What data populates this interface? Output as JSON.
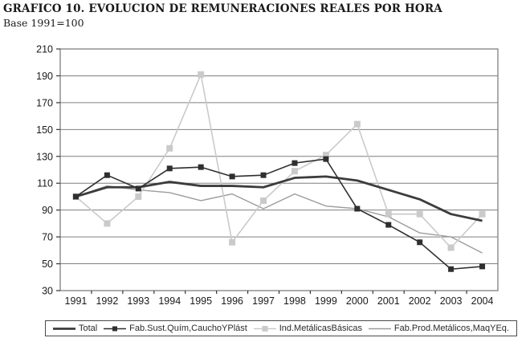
{
  "header": {
    "title": "GRAFICO 10. EVOLUCION DE REMUNERACIONES  REALES POR HORA",
    "subtitle": "Base 1991=100"
  },
  "chart_data": {
    "type": "line",
    "title": "GRAFICO 10. EVOLUCION DE REMUNERACIONES  REALES POR HORA",
    "subtitle": "Base 1991=100",
    "x": [
      1991,
      1992,
      1993,
      1994,
      1995,
      1996,
      1997,
      1998,
      1999,
      2000,
      2001,
      2002,
      2003,
      2004
    ],
    "ylim": [
      30,
      210
    ],
    "ytick_step": 20,
    "yticks": [
      30,
      50,
      70,
      90,
      110,
      130,
      150,
      170,
      190,
      210
    ],
    "grid": true,
    "legend_position": "bottom",
    "colors": {
      "grid": "#7f7f7f",
      "plot_border": "#7f7f7f",
      "axis_text": "#1a1a1a"
    },
    "series": [
      {
        "name": "Fab.Prod.Metálicos,MaqYEq.",
        "color": "#9c9c9c",
        "line_width": 1.4,
        "marker": false,
        "values": [
          100,
          108,
          105,
          103,
          97,
          102,
          91,
          102,
          93,
          91,
          85,
          73,
          70,
          58
        ]
      },
      {
        "name": "Ind.MetálicasBásicas",
        "color": "#cacaca",
        "line_width": 1.6,
        "marker": true,
        "marker_size": 8,
        "values": [
          100,
          80,
          100,
          136,
          191,
          66,
          97,
          119,
          131,
          154,
          87,
          87,
          62,
          87
        ]
      },
      {
        "name": "Total",
        "color": "#3c3c3c",
        "line_width": 2.8,
        "marker": false,
        "values": [
          100,
          107,
          107,
          111,
          108,
          108,
          107,
          114,
          115,
          112,
          105,
          98,
          87,
          82
        ]
      },
      {
        "name": "Fab.Sust.Quím,CauchoYPlást",
        "color": "#2f2f2f",
        "line_width": 1.6,
        "marker": true,
        "marker_size": 7,
        "values": [
          100,
          116,
          106,
          121,
          122,
          115,
          116,
          125,
          128,
          91,
          79,
          66,
          46,
          48
        ]
      }
    ],
    "legend_order": [
      "Total",
      "Fab.Sust.Quím,CauchoYPlást",
      "Ind.MetálicasBásicas",
      "Fab.Prod.Metálicos,MaqYEq."
    ]
  }
}
